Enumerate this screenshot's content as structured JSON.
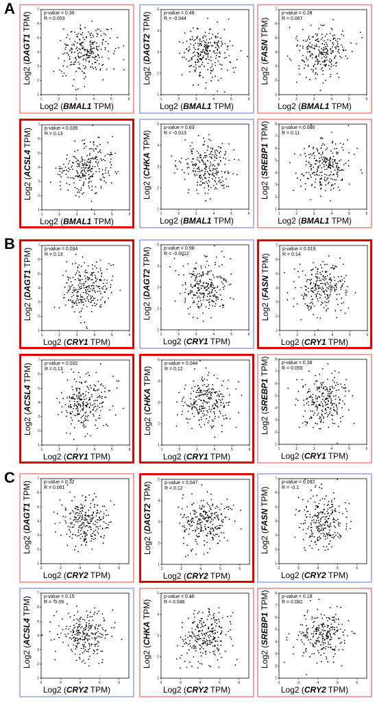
{
  "colors": {
    "strong": "#e00000",
    "weak_pos": "#f2a0a0",
    "negative": "#aeb6e8",
    "point": "#000000"
  },
  "sections": [
    {
      "label": "A",
      "x_gene": "BMAL1",
      "panels": [
        {
          "y_gene": "DAGT1",
          "p_value": "p-value = 0.39",
          "r": "R = 0.053",
          "frame": "weak_pos"
        },
        {
          "y_gene": "DAGT2",
          "p_value": "p-value = 0.48",
          "r": "R = -0.044",
          "frame": "negative"
        },
        {
          "y_gene": "FASN",
          "p_value": "p-value = 0.28",
          "r": "R = 0.067",
          "frame": "weak_pos"
        },
        {
          "y_gene": "ACSL4",
          "p_value": "p-value = 0.035",
          "r": "R = 0.13",
          "frame": "strong"
        },
        {
          "y_gene": "CHKA",
          "p_value": "p-value = 0.83",
          "r": "R = -0.013",
          "frame": "negative"
        },
        {
          "y_gene": "SREBP1",
          "p_value": "p-value = 0.086",
          "r": "R = 0.11",
          "frame": "weak_pos"
        }
      ]
    },
    {
      "label": "B",
      "x_gene": "CRY1",
      "panels": [
        {
          "y_gene": "DAGT1",
          "p_value": "p-value = 0.034",
          "r": "R = 0.13",
          "frame": "strong"
        },
        {
          "y_gene": "DAGT2",
          "p_value": "p-value = 0.98",
          "r": "R = -0.0012",
          "frame": "negative"
        },
        {
          "y_gene": "FASN",
          "p_value": "p-value = 0.019",
          "r": "R = 0.14",
          "frame": "strong"
        },
        {
          "y_gene": "ACSL4",
          "p_value": "p-value = 0.032",
          "r": "R = 0.13",
          "frame": "strong"
        },
        {
          "y_gene": "CHKA",
          "p_value": "p-value = 0.044",
          "r": "R = 0.12",
          "frame": "strong"
        },
        {
          "y_gene": "SREBP1",
          "p_value": "p-value = 0.38",
          "r": "R = 0.055",
          "frame": "weak_pos"
        }
      ]
    },
    {
      "label": "C",
      "x_gene": "CRY2",
      "panels": [
        {
          "y_gene": "DAGT1",
          "p_value": "p-value = 0.32",
          "r": "R = 0.061",
          "frame": "weak_pos"
        },
        {
          "y_gene": "DAGT2",
          "p_value": "p-value = 0.047",
          "r": "R = 0.12",
          "frame": "strong"
        },
        {
          "y_gene": "FASN",
          "p_value": "p-value = 0.092",
          "r": "R = -0.1",
          "frame": "negative"
        },
        {
          "y_gene": "ACSL4",
          "p_value": "p-value = 0.15",
          "r": "R = -0.09",
          "frame": "negative"
        },
        {
          "y_gene": "CHKA",
          "p_value": "p-value = 0.46",
          "r": "R = 0.046",
          "frame": "weak_pos"
        },
        {
          "y_gene": "SREBP1",
          "p_value": "p-value = 0.18",
          "r": "R = 0.082",
          "frame": "weak_pos"
        }
      ]
    }
  ],
  "chart_data": {
    "type": "scatter",
    "grid": false,
    "panel_grid": "3 sections x 2 rows x 3 columns",
    "x_axis_label_format": "Log2 (X TPM)",
    "y_axis_label_format": "Log2 (Y TPM)",
    "y_genes": [
      "DAGT1",
      "DAGT2",
      "FASN",
      "ACSL4",
      "CHKA",
      "SREBP1"
    ],
    "x_genes": [
      "BMAL1",
      "CRY1",
      "CRY2"
    ],
    "approx_points_per_panel": 250,
    "x_ranges": {
      "BMAL1": [
        1,
        6
      ],
      "CRY1": [
        1,
        6
      ],
      "CRY2": [
        2,
        6.5
      ]
    },
    "y_ranges": {
      "DAGT1": [
        1,
        7
      ],
      "DAGT2": [
        1,
        5
      ],
      "FASN": [
        1,
        7
      ],
      "ACSL4": [
        1,
        7
      ],
      "CHKA": [
        1,
        5
      ],
      "SREBP1": [
        1,
        8
      ]
    },
    "note_on_frames": "strong = p < 0.05 positive correlation; weak_pos = non-significant positive; negative = negative correlation"
  }
}
